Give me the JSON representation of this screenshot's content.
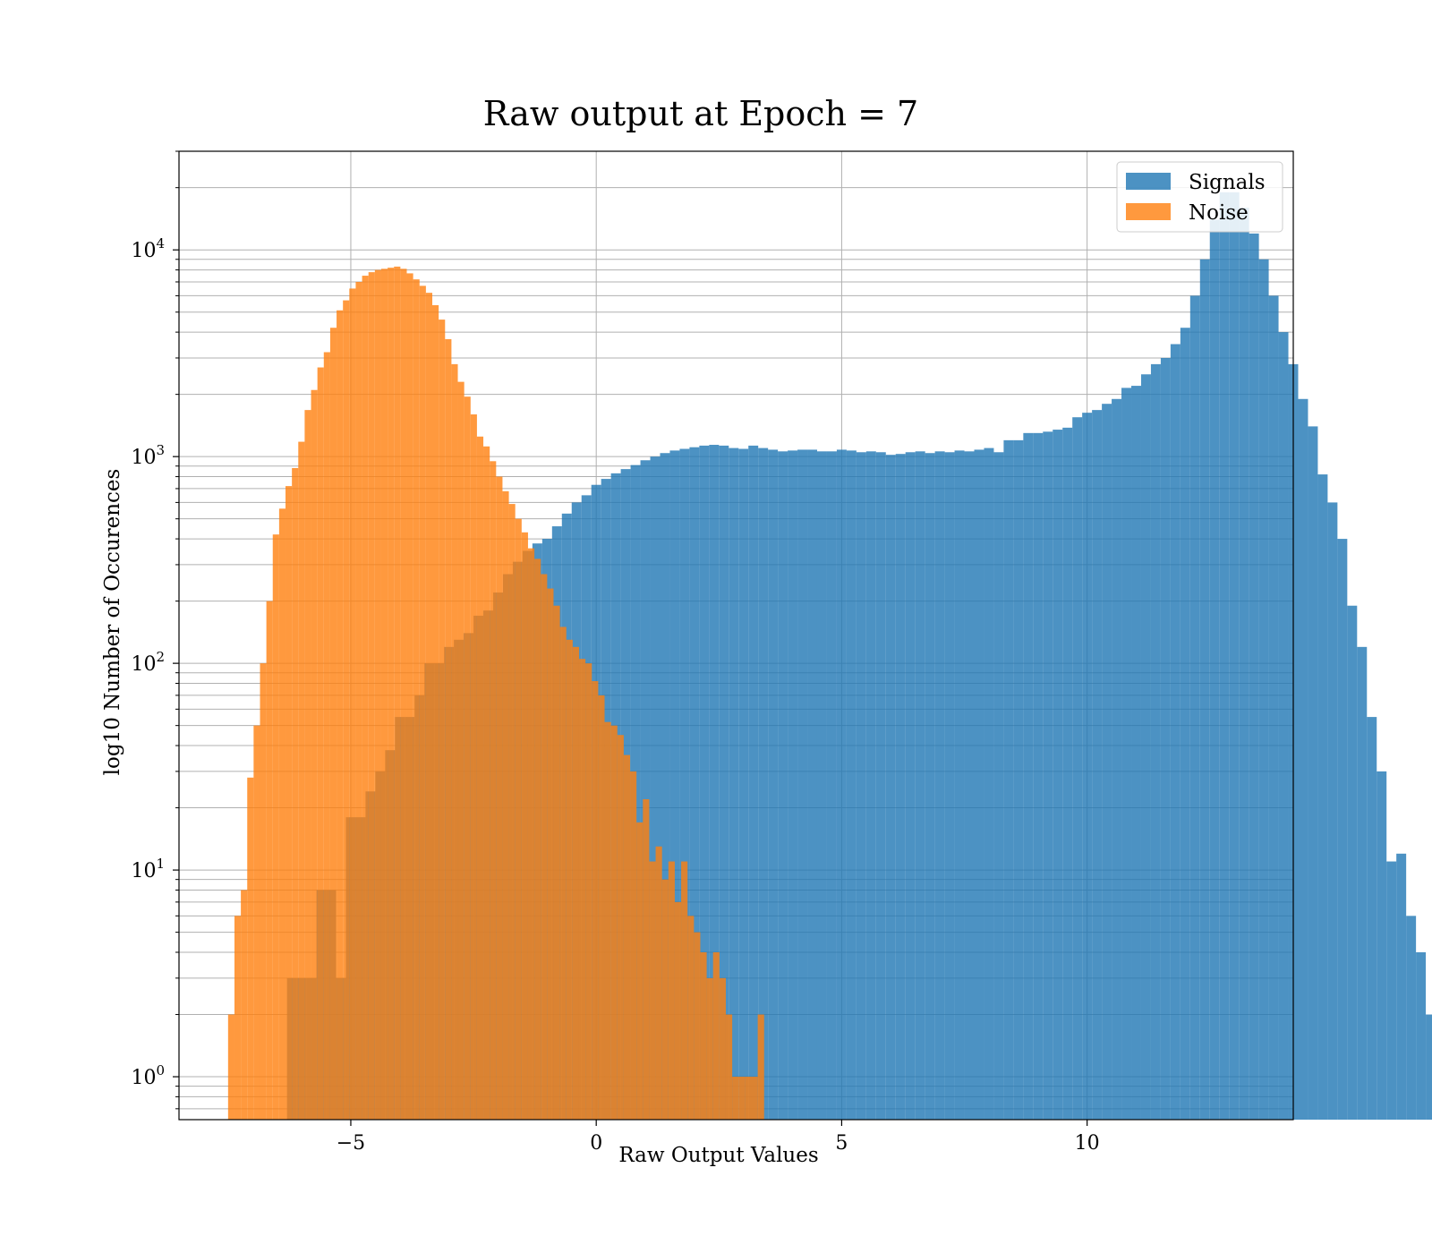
{
  "chart_data": {
    "type": "bar",
    "title": "Raw output at Epoch = 7",
    "xlabel": "Raw Output Values",
    "ylabel": "log10 Number of Occurences",
    "xlim": [
      -8.5,
      14.2
    ],
    "ylim": [
      0.62,
      30000
    ],
    "yscale": "log",
    "grid": true,
    "legend_position": "top-right",
    "x_ticks": [
      -5,
      0,
      5,
      10
    ],
    "x_tick_labels": [
      "−5",
      "0",
      "5",
      "10"
    ],
    "y_ticks": [
      1,
      10,
      100,
      1000,
      10000
    ],
    "y_tick_labels": [
      {
        "base": "10",
        "exp": "0"
      },
      {
        "base": "10",
        "exp": "1"
      },
      {
        "base": "10",
        "exp": "2"
      },
      {
        "base": "10",
        "exp": "3"
      },
      {
        "base": "10",
        "exp": "4"
      }
    ],
    "series": [
      {
        "name": "Signals",
        "color": "#1f77b4",
        "opacity": 0.8,
        "bin_start": -6.3,
        "bin_width": 0.2,
        "values": [
          3,
          3,
          3,
          8,
          8,
          3,
          18,
          18,
          24,
          30,
          38,
          55,
          55,
          70,
          100,
          100,
          120,
          130,
          140,
          170,
          180,
          220,
          270,
          310,
          350,
          380,
          400,
          460,
          530,
          600,
          650,
          730,
          780,
          830,
          870,
          910,
          960,
          1000,
          1040,
          1070,
          1090,
          1110,
          1130,
          1140,
          1130,
          1100,
          1090,
          1130,
          1100,
          1080,
          1060,
          1070,
          1080,
          1080,
          1060,
          1060,
          1080,
          1070,
          1050,
          1060,
          1050,
          1020,
          1030,
          1050,
          1060,
          1040,
          1060,
          1050,
          1070,
          1060,
          1080,
          1100,
          1050,
          1200,
          1200,
          1300,
          1300,
          1320,
          1350,
          1380,
          1550,
          1630,
          1680,
          1800,
          1900,
          2150,
          2200,
          2500,
          2800,
          3000,
          3500,
          4200,
          6000,
          9000,
          14000,
          19000,
          19000,
          16000,
          12000,
          9000,
          6000,
          4000,
          2800,
          1900,
          1400,
          820,
          600,
          400,
          190,
          120,
          55,
          30,
          11,
          12,
          6,
          4,
          2
        ]
      },
      {
        "name": "Noise",
        "color": "#ff7f0e",
        "opacity": 0.8,
        "bin_start": -7.5,
        "bin_width": 0.13,
        "values": [
          2,
          6,
          8,
          28,
          50,
          100,
          200,
          420,
          560,
          720,
          880,
          1180,
          1680,
          2100,
          2700,
          3200,
          4200,
          5100,
          5700,
          6500,
          7000,
          7500,
          7800,
          8000,
          8100,
          8200,
          8300,
          8100,
          7700,
          7200,
          6700,
          6200,
          5400,
          4600,
          3700,
          2800,
          2300,
          1950,
          1600,
          1250,
          1120,
          950,
          800,
          680,
          590,
          500,
          430,
          360,
          320,
          270,
          230,
          190,
          150,
          130,
          120,
          105,
          100,
          82,
          70,
          52,
          50,
          45,
          36,
          30,
          17,
          22,
          11,
          13,
          9,
          11,
          7,
          11,
          6,
          5,
          4,
          3,
          4,
          3,
          2,
          1,
          1,
          1,
          1,
          2
        ]
      }
    ]
  }
}
